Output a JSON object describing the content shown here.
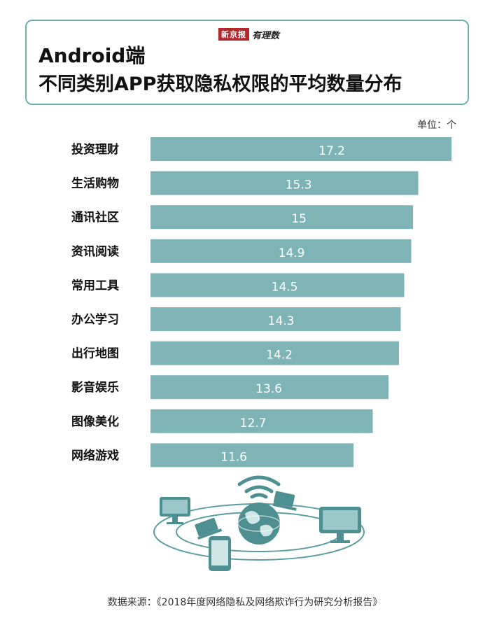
{
  "header": {
    "brand_badge": "新京报",
    "brand_text": "有理数",
    "title_line1": "Android端",
    "title_line2": "不同类别APP获取隐私权限的平均数量分布"
  },
  "unit_label": "单位：个",
  "source": "数据来源：《2018年度网络隐私及网络欺诈行为研究分析报告》",
  "colors": {
    "bar": "#7fb4b6",
    "border": "#6fb0b3",
    "brand": "#b3262b"
  },
  "illustration": {
    "icons": [
      "wifi-icon",
      "globe-icon",
      "monitor-icon",
      "laptop-icon",
      "phone-icon"
    ]
  },
  "chart_data": {
    "type": "bar",
    "orientation": "horizontal",
    "categories": [
      "投资理财",
      "生活购物",
      "通讯社区",
      "资讯阅读",
      "常用工具",
      "办公学习",
      "出行地图",
      "影音娱乐",
      "图像美化",
      "网络游戏"
    ],
    "values": [
      17.2,
      15.3,
      15,
      14.9,
      14.5,
      14.3,
      14.2,
      13.6,
      12.7,
      11.6
    ],
    "value_labels": [
      "17.2",
      "15.3",
      "15",
      "14.9",
      "14.5",
      "14.3",
      "14.2",
      "13.6",
      "12.7",
      "11.6"
    ],
    "xlim": [
      0,
      17.2
    ],
    "grid": false,
    "legend": "none"
  }
}
